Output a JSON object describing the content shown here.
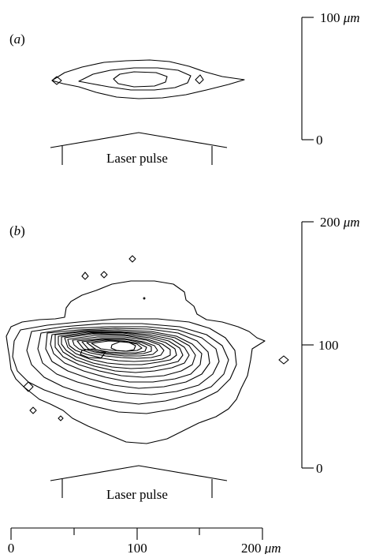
{
  "panel_a": {
    "label_open": "(",
    "label_letter": "a",
    "label_close": ")",
    "pulse_label": "Laser pulse",
    "scale_top_value": "100",
    "scale_top_unit": "μm",
    "scale_bottom": "0"
  },
  "panel_b": {
    "label_open": "(",
    "label_letter": "b",
    "label_close": ")",
    "pulse_label": "Laser pulse",
    "scale_top_value": "200",
    "scale_top_unit": "μm",
    "scale_mid": "100",
    "scale_bottom": "0"
  },
  "x_axis": {
    "tick_0": "0",
    "tick_100": "100",
    "tick_200_value": "200",
    "tick_200_unit": "μm"
  }
}
